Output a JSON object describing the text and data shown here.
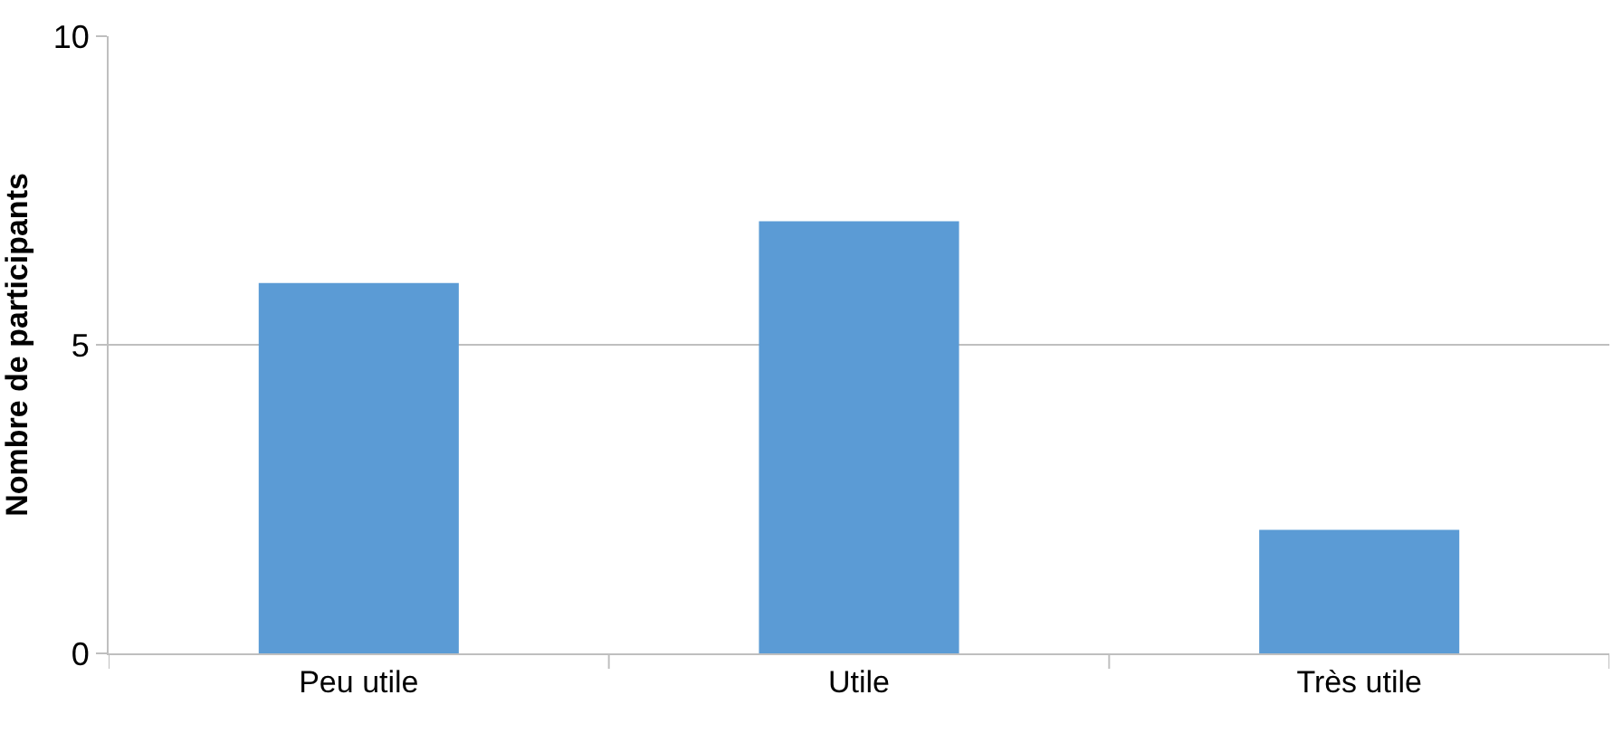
{
  "chart_data": {
    "type": "bar",
    "ylabel": "Nombre de participants",
    "categories": [
      "Peu utile",
      "Utile",
      "Très utile"
    ],
    "values": [
      6,
      7,
      2
    ],
    "color": "#5b9bd5",
    "ylim": [
      0,
      10
    ],
    "yticks": [
      0,
      5,
      10
    ],
    "grid": "y"
  }
}
